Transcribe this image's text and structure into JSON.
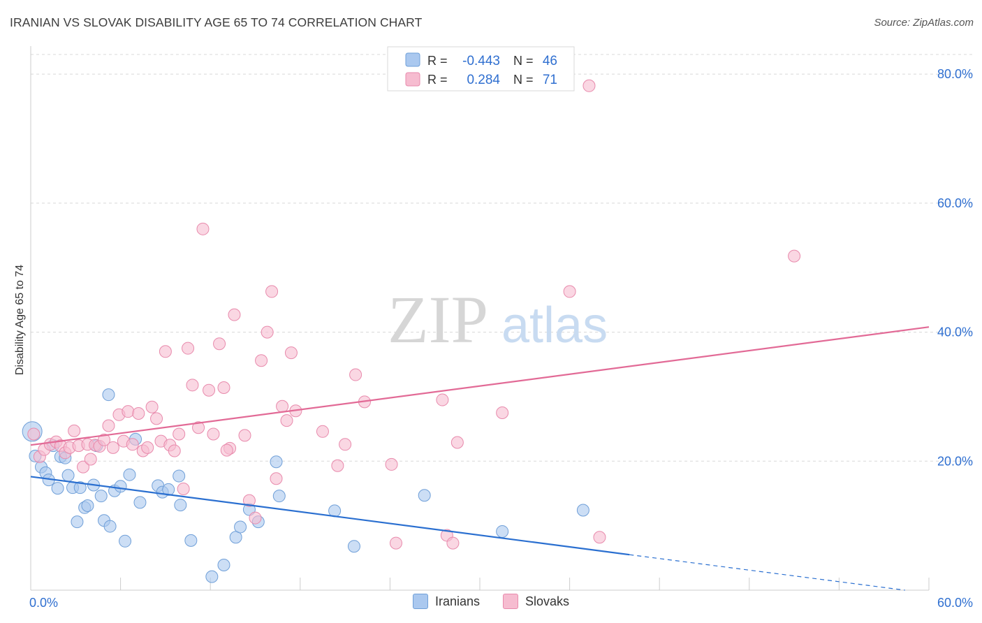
{
  "header": {
    "title": "IRANIAN VS SLOVAK DISABILITY AGE 65 TO 74 CORRELATION CHART",
    "source": "Source: ZipAtlas.com"
  },
  "watermark": {
    "zip": "ZIP",
    "atlas": "atlas"
  },
  "colors": {
    "iranians_fill": "#aac8ef",
    "iranians_stroke": "#6f9fd8",
    "iranians_line": "#2a6fd0",
    "slovaks_fill": "#f6bcd0",
    "slovaks_stroke": "#e88aac",
    "slovaks_line": "#e26a96",
    "value_text": "#2f6fd0",
    "grid": "#d8d8d8"
  },
  "stats_legend": {
    "rows": [
      {
        "r_label": "R =",
        "r_value": "-0.443",
        "n_label": "N =",
        "n_value": "46"
      },
      {
        "r_label": "R =",
        "r_value": "0.284",
        "n_label": "N =",
        "n_value": "71"
      }
    ]
  },
  "chart_data": {
    "type": "scatter",
    "title": "IRANIAN VS SLOVAK DISABILITY AGE 65 TO 74 CORRELATION CHART",
    "xlabel": "",
    "ylabel": "Disability Age 65 to 74",
    "xlim": [
      0,
      60
    ],
    "ylim": [
      0,
      85
    ],
    "x_tick_labels": [
      "0.0%",
      "60.0%"
    ],
    "y_ticks": [
      20,
      40,
      60,
      80
    ],
    "y_tick_labels": [
      "20.0%",
      "40.0%",
      "60.0%",
      "80.0%"
    ],
    "grid": "horizontal dashed",
    "legend_position": "bottom",
    "series": [
      {
        "name": "Iranians",
        "r": -0.443,
        "n": 46,
        "trend": {
          "x0": 0,
          "y0": 17.6,
          "x1": 40,
          "y1": 5.5,
          "dashed_to_x": 58.4,
          "dashed_to_y": 0
        },
        "points": [
          [
            0.1,
            24.6
          ],
          [
            0.3,
            20.8
          ],
          [
            0.7,
            19.1
          ],
          [
            1.0,
            18.2
          ],
          [
            1.2,
            17.1
          ],
          [
            1.5,
            22.4
          ],
          [
            1.8,
            15.8
          ],
          [
            2.0,
            20.7
          ],
          [
            2.3,
            20.5
          ],
          [
            2.5,
            17.8
          ],
          [
            2.8,
            15.9
          ],
          [
            3.1,
            10.6
          ],
          [
            3.3,
            15.9
          ],
          [
            3.6,
            12.8
          ],
          [
            3.8,
            13.1
          ],
          [
            4.2,
            16.3
          ],
          [
            4.4,
            22.4
          ],
          [
            4.7,
            14.6
          ],
          [
            4.9,
            10.8
          ],
          [
            5.3,
            9.9
          ],
          [
            5.6,
            15.4
          ],
          [
            6.0,
            16.1
          ],
          [
            6.3,
            7.6
          ],
          [
            6.6,
            17.9
          ],
          [
            7.3,
            13.6
          ],
          [
            8.5,
            16.2
          ],
          [
            8.8,
            15.2
          ],
          [
            9.2,
            15.6
          ],
          [
            9.9,
            17.7
          ],
          [
            10.0,
            13.2
          ],
          [
            10.7,
            7.7
          ],
          [
            12.1,
            2.1
          ],
          [
            12.9,
            3.9
          ],
          [
            13.7,
            8.2
          ],
          [
            14.0,
            9.8
          ],
          [
            14.6,
            12.5
          ],
          [
            15.2,
            10.6
          ],
          [
            16.4,
            19.9
          ],
          [
            16.6,
            14.6
          ],
          [
            5.2,
            30.3
          ],
          [
            7.0,
            23.4
          ],
          [
            20.3,
            12.3
          ],
          [
            21.6,
            6.8
          ],
          [
            26.3,
            14.7
          ],
          [
            31.5,
            9.1
          ],
          [
            36.9,
            12.4
          ]
        ]
      },
      {
        "name": "Slovaks",
        "r": 0.284,
        "n": 71,
        "trend": {
          "x0": 0,
          "y0": 22.5,
          "x1": 60,
          "y1": 40.8
        },
        "points": [
          [
            0.2,
            24.2
          ],
          [
            0.6,
            20.7
          ],
          [
            0.9,
            21.8
          ],
          [
            1.3,
            22.6
          ],
          [
            1.7,
            23.0
          ],
          [
            2.0,
            22.4
          ],
          [
            2.3,
            21.3
          ],
          [
            2.6,
            22.1
          ],
          [
            2.9,
            24.7
          ],
          [
            3.2,
            22.4
          ],
          [
            3.5,
            19.1
          ],
          [
            3.8,
            22.6
          ],
          [
            4.0,
            20.3
          ],
          [
            4.3,
            22.5
          ],
          [
            4.6,
            22.3
          ],
          [
            4.9,
            23.3
          ],
          [
            5.2,
            25.5
          ],
          [
            5.5,
            22.1
          ],
          [
            5.9,
            27.2
          ],
          [
            6.2,
            23.1
          ],
          [
            6.5,
            27.7
          ],
          [
            6.8,
            22.6
          ],
          [
            7.2,
            27.4
          ],
          [
            7.5,
            21.6
          ],
          [
            7.8,
            22.1
          ],
          [
            8.1,
            28.4
          ],
          [
            8.4,
            26.6
          ],
          [
            8.7,
            23.1
          ],
          [
            9.0,
            37.0
          ],
          [
            9.3,
            22.5
          ],
          [
            9.6,
            21.6
          ],
          [
            9.9,
            24.2
          ],
          [
            10.2,
            15.7
          ],
          [
            10.5,
            37.5
          ],
          [
            10.8,
            31.8
          ],
          [
            11.2,
            25.2
          ],
          [
            11.5,
            56.0
          ],
          [
            11.9,
            31.0
          ],
          [
            12.2,
            24.2
          ],
          [
            12.6,
            38.2
          ],
          [
            12.9,
            31.4
          ],
          [
            13.3,
            22.0
          ],
          [
            13.6,
            42.7
          ],
          [
            14.3,
            24.0
          ],
          [
            14.6,
            13.9
          ],
          [
            15.0,
            11.2
          ],
          [
            15.4,
            35.6
          ],
          [
            15.8,
            40.0
          ],
          [
            16.1,
            46.3
          ],
          [
            16.4,
            17.3
          ],
          [
            16.8,
            28.5
          ],
          [
            17.1,
            26.3
          ],
          [
            17.4,
            36.8
          ],
          [
            17.7,
            27.8
          ],
          [
            19.5,
            24.6
          ],
          [
            20.5,
            19.3
          ],
          [
            21.0,
            22.6
          ],
          [
            21.7,
            33.4
          ],
          [
            22.3,
            29.2
          ],
          [
            24.1,
            19.5
          ],
          [
            24.4,
            7.3
          ],
          [
            27.5,
            29.5
          ],
          [
            27.8,
            8.5
          ],
          [
            28.2,
            7.3
          ],
          [
            28.5,
            22.9
          ],
          [
            31.5,
            27.5
          ],
          [
            36.0,
            46.3
          ],
          [
            38.0,
            8.2
          ],
          [
            37.3,
            78.2
          ],
          [
            51.0,
            51.8
          ],
          [
            13.1,
            21.7
          ]
        ]
      }
    ]
  }
}
